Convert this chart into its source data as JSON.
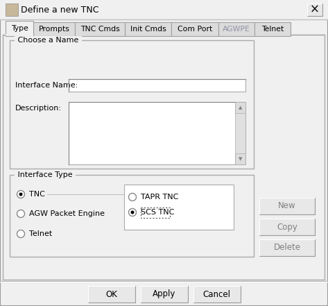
{
  "title": "Define a new TNC",
  "bg_color": "#f0f0f0",
  "dialog_bg": "#f0f0f0",
  "white": "#ffffff",
  "border_light": "#ffffff",
  "border_mid": "#c0c0c0",
  "border_dark": "#808080",
  "tabs": [
    "Type",
    "Prompts",
    "TNC Cmds",
    "Init Cmds",
    "Com Port",
    "AGWPE",
    "Telnet"
  ],
  "active_tab": 0,
  "grayed_tabs": [
    5
  ],
  "group1_title": "Choose a Name",
  "label_interface_name": "Interface Name:",
  "label_description": "Description:",
  "group2_title": "Interface Type",
  "radio_interface_types": [
    "TNC",
    "AGW Packet Engine",
    "Telnet"
  ],
  "selected_interface_type": 0,
  "sub_radio_labels": [
    "TAPR TNC",
    "SCS TNC"
  ],
  "selected_sub_radio": 1,
  "buttons_right": [
    "New",
    "Copy",
    "Delete"
  ],
  "buttons_bottom": [
    "OK",
    "Apply",
    "Cancel"
  ],
  "text_color": "#000000",
  "gray_text": "#9090a8",
  "button_bg": "#e8e8e8",
  "tab_widths": [
    40,
    60,
    72,
    67,
    68,
    52,
    52
  ]
}
